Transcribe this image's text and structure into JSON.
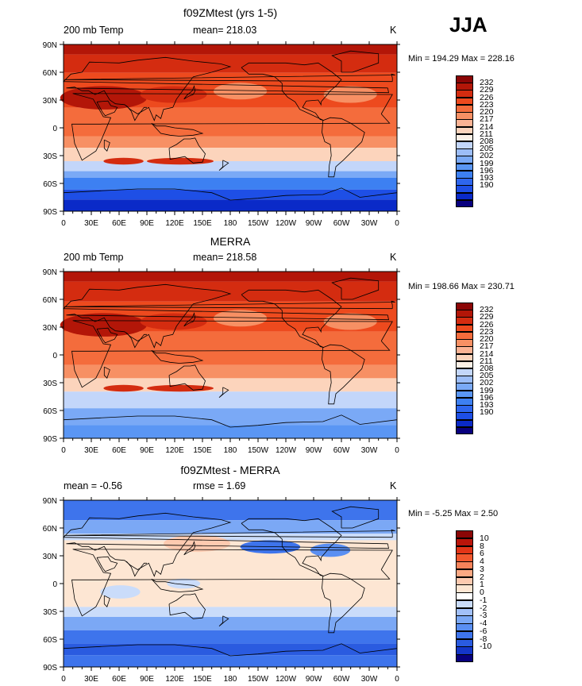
{
  "season": "JJA",
  "x_ticks": [
    "0",
    "30E",
    "60E",
    "90E",
    "120E",
    "150E",
    "180",
    "150W",
    "120W",
    "90W",
    "60W",
    "30W",
    "0"
  ],
  "y_ticks": [
    "90N",
    "60N",
    "30N",
    "0",
    "30S",
    "60S",
    "90S"
  ],
  "units": "K",
  "colors": {
    "abs_scale": [
      "#08007e",
      "#0a2ac8",
      "#1e4fe6",
      "#2e66ee",
      "#3d80f2",
      "#5a96f4",
      "#7aa9f6",
      "#9cbdf8",
      "#c3d6fa",
      "#fbf0e6",
      "#fcd4bc",
      "#fbb394",
      "#f79064",
      "#f46c3c",
      "#ed4a1e",
      "#d42c10",
      "#b31608",
      "#8b0606"
    ],
    "diff_scale": [
      "#08007e",
      "#1436c8",
      "#2a5be0",
      "#3e74ec",
      "#5a8ff2",
      "#7ba8f5",
      "#a2c0f8",
      "#cadcfa",
      "#ffffff",
      "#fde6d3",
      "#fdcab0",
      "#fba883",
      "#f7835a",
      "#f2582e",
      "#e33517",
      "#ba150a",
      "#8b0606"
    ]
  },
  "panels": [
    {
      "title": "f09ZMtest (yrs 1-5)",
      "variable": "200 mb Temp",
      "stat_left": "",
      "stat": "mean= 218.03",
      "minmax": "Min = 194.29 Max = 228.16",
      "legend_labels": [
        "232",
        "229",
        "226",
        "223",
        "220",
        "217",
        "214",
        "211",
        "208",
        "205",
        "202",
        "199",
        "196",
        "193",
        "190"
      ]
    },
    {
      "title": "MERRA",
      "variable": "200 mb Temp",
      "stat_left": "",
      "stat": "mean= 218.58",
      "minmax": "Min = 198.66 Max = 230.71",
      "legend_labels": [
        "232",
        "229",
        "226",
        "223",
        "220",
        "217",
        "214",
        "211",
        "208",
        "205",
        "202",
        "199",
        "196",
        "193",
        "190"
      ]
    },
    {
      "title": "f09ZMtest - MERRA",
      "variable": "",
      "stat_left": "mean = -0.56",
      "stat": "rmse = 1.69",
      "minmax": "Min = -5.25 Max = 2.50",
      "legend_labels": [
        "10",
        "8",
        "6",
        "4",
        "3",
        "2",
        "1",
        "0",
        "-1",
        "-2",
        "-3",
        "-4",
        "-6",
        "-8",
        "-10"
      ]
    }
  ]
}
